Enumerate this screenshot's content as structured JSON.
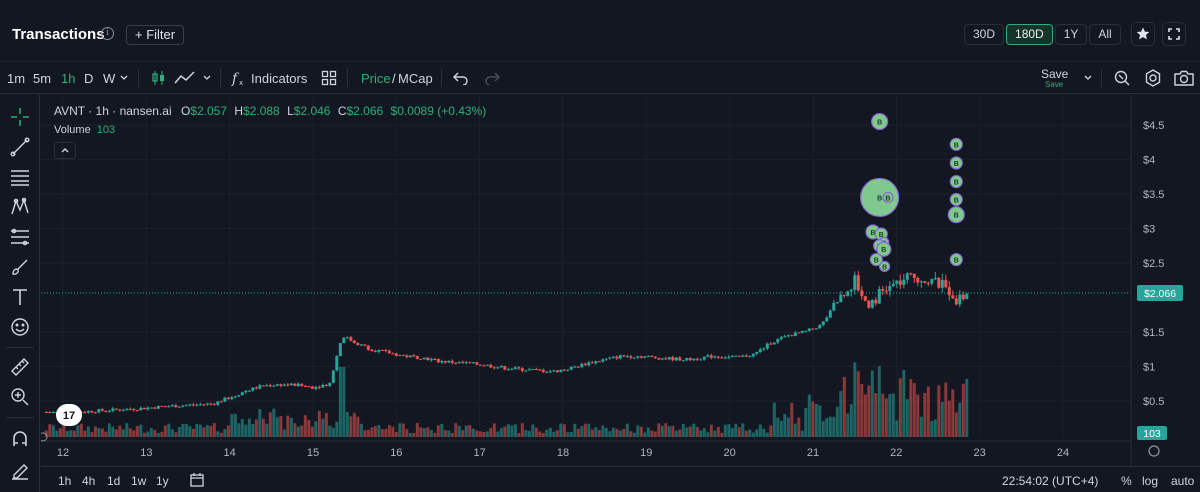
{
  "header": {
    "title": "Transactions",
    "info_icon": "info-icon",
    "filter_label": "+ Filter",
    "ranges": [
      "30D",
      "180D",
      "1Y",
      "All"
    ],
    "active_range": "180D",
    "star_icon": "star-icon",
    "fullscreen_icon": "fullscreen-icon"
  },
  "toolbar": {
    "intervals": [
      "1m",
      "5m",
      "1h",
      "D",
      "W"
    ],
    "active_interval": "1h",
    "indicators_label": "Indicators",
    "price_label": "Price",
    "separator": "/",
    "mcap_label": "MCap",
    "save_label": "Save",
    "save_sub": "Save"
  },
  "legend": {
    "symbol": "AVNT · 1h · nansen.ai",
    "o_label": "O",
    "o_value": "$2.057",
    "h_label": "H",
    "h_value": "$2.088",
    "l_label": "L",
    "l_value": "$2.046",
    "c_label": "C",
    "c_value": "$2.066",
    "change": "$0.0089 (+0.43%)",
    "volume_label": "Volume",
    "volume_value": "103"
  },
  "price_axis": {
    "ticks": [
      "$4.5",
      "$4",
      "$3.5",
      "$3",
      "$2.5",
      "$1.5",
      "$1",
      "$0.5"
    ],
    "current_price_label": "$2.066",
    "volume_label": "103"
  },
  "time_axis": {
    "ticks": [
      "12",
      "13",
      "14",
      "15",
      "16",
      "17",
      "18",
      "19",
      "20",
      "21",
      "22",
      "23",
      "24"
    ]
  },
  "bottom": {
    "ranges": [
      "1h",
      "4h",
      "1d",
      "1w",
      "1y"
    ],
    "time": "22:54:02 (UTC+4)",
    "percent": "%",
    "log": "log",
    "auto": "auto"
  },
  "colors": {
    "up": "#26a69a",
    "down": "#ef5350",
    "accent": "#2fae7b",
    "marker_fill": "#7fc98f",
    "marker_stroke": "#8a63d2"
  },
  "chart_data": {
    "type": "candlestick",
    "x_unit": "day of month",
    "ylim": [
      0,
      4.8
    ],
    "price_series": [
      [
        11.8,
        0.34
      ],
      [
        12.0,
        0.33
      ],
      [
        12.3,
        0.35
      ],
      [
        12.6,
        0.37
      ],
      [
        12.9,
        0.39
      ],
      [
        13.2,
        0.42
      ],
      [
        13.5,
        0.44
      ],
      [
        13.8,
        0.46
      ],
      [
        14.0,
        0.55
      ],
      [
        14.2,
        0.65
      ],
      [
        14.4,
        0.72
      ],
      [
        14.6,
        0.74
      ],
      [
        14.8,
        0.73
      ],
      [
        15.0,
        0.7
      ],
      [
        15.2,
        0.75
      ],
      [
        15.35,
        1.45
      ],
      [
        15.5,
        1.35
      ],
      [
        15.7,
        1.25
      ],
      [
        15.9,
        1.2
      ],
      [
        16.1,
        1.15
      ],
      [
        16.3,
        1.13
      ],
      [
        16.5,
        1.08
      ],
      [
        16.8,
        1.05
      ],
      [
        17.0,
        1.03
      ],
      [
        17.3,
        0.98
      ],
      [
        17.6,
        0.95
      ],
      [
        17.9,
        0.93
      ],
      [
        18.1,
        0.98
      ],
      [
        18.3,
        1.05
      ],
      [
        18.5,
        1.1
      ],
      [
        18.7,
        1.15
      ],
      [
        18.9,
        1.15
      ],
      [
        19.2,
        1.12
      ],
      [
        19.5,
        1.1
      ],
      [
        19.8,
        1.15
      ],
      [
        20.1,
        1.13
      ],
      [
        20.3,
        1.18
      ],
      [
        20.5,
        1.35
      ],
      [
        20.7,
        1.45
      ],
      [
        20.9,
        1.5
      ],
      [
        21.1,
        1.6
      ],
      [
        21.3,
        1.95
      ],
      [
        21.5,
        2.25
      ],
      [
        21.65,
        1.9
      ],
      [
        21.8,
        2.05
      ],
      [
        22.0,
        2.2
      ],
      [
        22.2,
        2.3
      ],
      [
        22.4,
        2.25
      ],
      [
        22.6,
        2.15
      ],
      [
        22.75,
        1.95
      ],
      [
        22.85,
        2.066
      ]
    ],
    "trade_markers_note": "B",
    "current_price": 2.066
  }
}
